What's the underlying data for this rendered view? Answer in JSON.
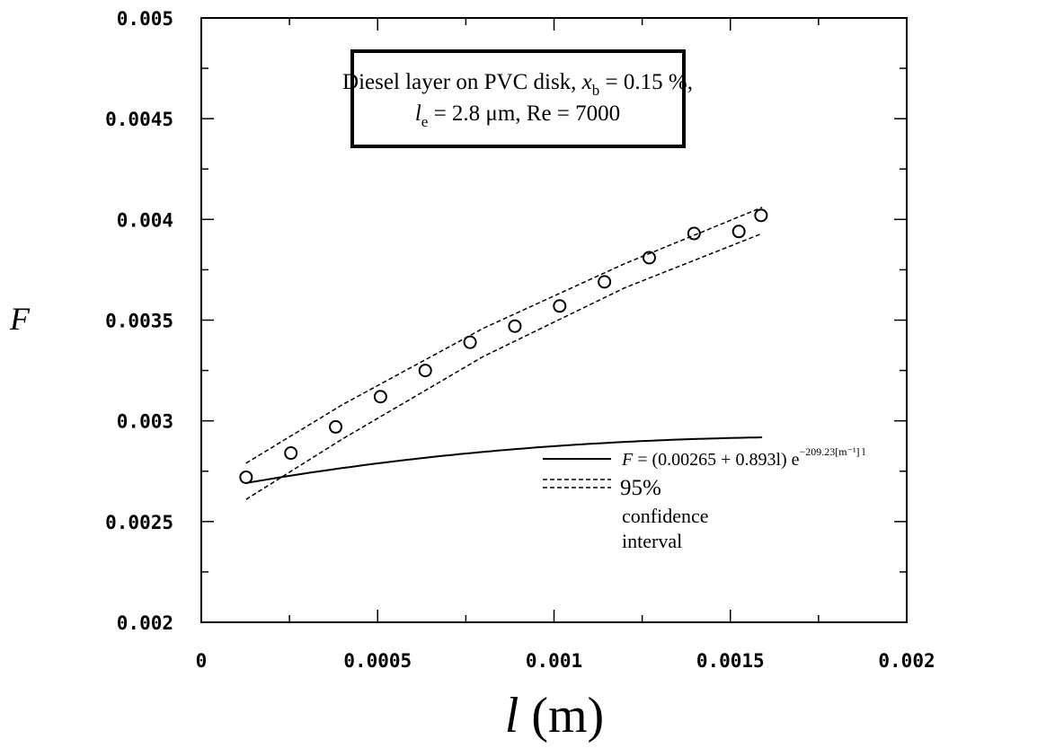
{
  "chart_data": {
    "type": "scatter",
    "title": "",
    "xlabel": "l",
    "xlabel_unit": "(m)",
    "ylabel": "F",
    "xlim": [
      0,
      0.002
    ],
    "ylim": [
      0.002,
      0.005
    ],
    "x_ticks": [
      0,
      0.0005,
      0.001,
      0.0015,
      0.002
    ],
    "x_tick_labels": [
      "0",
      "0.0005",
      "0.001",
      "0.0015",
      "0.002"
    ],
    "y_ticks": [
      0.002,
      0.0025,
      0.003,
      0.0035,
      0.004,
      0.0045,
      0.005
    ],
    "y_tick_labels": [
      "0.002",
      "0.0025",
      "0.003",
      "0.0035",
      "0.004",
      "0.0045",
      "0.005"
    ],
    "grid": false,
    "annotation": {
      "line1_a": "Diesel layer on PVC disk, ",
      "line1_var": "x",
      "line1_sub": "b",
      "line1_b": " = 0.15 %,",
      "line2_var": "l",
      "line2_sub": "e",
      "line2_b": " =  2.8 μm, Re = 7000"
    },
    "legend": {
      "placement": "lower-right",
      "fit_label_lhs": "F",
      "fit_label_eq": " = (0.00265 + 0.893l) e",
      "fit_label_exp": "−209.23[m⁻¹] l",
      "ci_label_lines": [
        "95%",
        "confidence",
        "interval"
      ]
    },
    "series": [
      {
        "kind": "points",
        "x": [
          0.000127,
          0.000254,
          0.000381,
          0.000508,
          0.000635,
          0.000762,
          0.000889,
          0.001016,
          0.001143,
          0.00127,
          0.001397,
          0.001524,
          0.001587
        ],
        "y": [
          0.00272,
          0.00284,
          0.00297,
          0.00312,
          0.00325,
          0.00339,
          0.00347,
          0.00357,
          0.00369,
          0.00381,
          0.00393,
          0.00394,
          0.00402
        ]
      },
      {
        "kind": "fit",
        "model": {
          "a": 0.00265,
          "b": 0.893,
          "k": 209.23
        },
        "x_range": [
          0.000127,
          0.00159
        ]
      },
      {
        "kind": "ci-upper",
        "x": [
          0.000127,
          0.0004,
          0.0008,
          0.0012,
          0.00159
        ],
        "y": [
          0.00279,
          0.00308,
          0.00346,
          0.00378,
          0.00406
        ]
      },
      {
        "kind": "ci-lower",
        "x": [
          0.000127,
          0.0004,
          0.0008,
          0.0012,
          0.00159
        ],
        "y": [
          0.00261,
          0.00291,
          0.00332,
          0.00366,
          0.00393
        ]
      }
    ]
  }
}
